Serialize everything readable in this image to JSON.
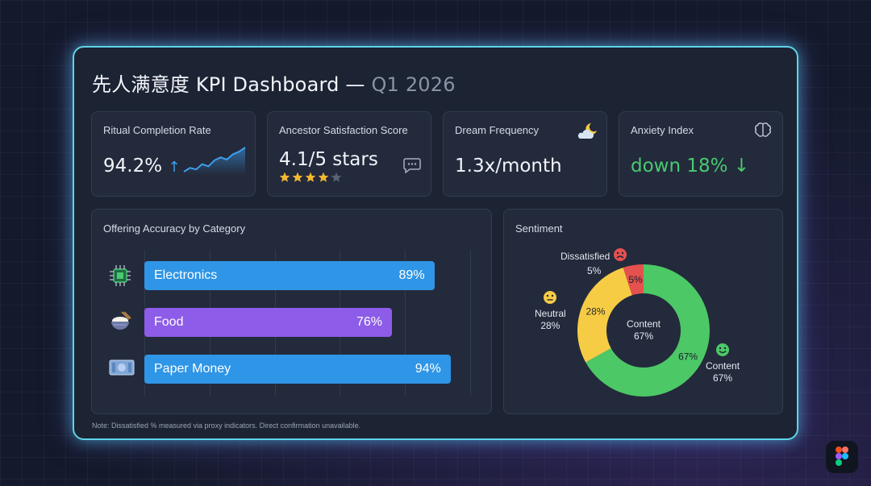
{
  "header": {
    "title": "先人满意度 KPI Dashboard —",
    "title_suffix": "Q1 2026"
  },
  "kpis": {
    "ritual": {
      "label": "Ritual Completion Rate",
      "value": "94.2%",
      "arrow": "↑",
      "icon": "sparkline-chart"
    },
    "ancestor": {
      "label": "Ancestor Satisfaction Score",
      "value": "4.1/5 stars",
      "stars": 4.1,
      "stars_max": 5,
      "icon": "chat-bubble-icon"
    },
    "dream": {
      "label": "Dream Frequency",
      "value": "1.3x/month",
      "icon": "moon-cloud-icon"
    },
    "anxiety": {
      "label": "Anxiety Index",
      "value": "down 18%",
      "arrow": "↓",
      "icon": "brain-icon",
      "value_color": "#49c971"
    }
  },
  "offering": {
    "label": "Offering Accuracy by Category"
  },
  "sentiment": {
    "label": "Sentiment",
    "center_label": "Content",
    "center_value": "67%"
  },
  "note": "Note: Dissatisfied % measured via proxy indicators. Direct confirmation unavailable.",
  "chart_data": [
    {
      "type": "bar",
      "title": "Offering Accuracy by Category",
      "orientation": "horizontal",
      "categories": [
        "Electronics",
        "Food",
        "Paper Money"
      ],
      "values": [
        89,
        76,
        94
      ],
      "value_labels": [
        "89%",
        "76%",
        "94%"
      ],
      "colors": [
        "#2f95e6",
        "#8d5ce8",
        "#2f95e6"
      ],
      "icons": [
        "circuit-chip-icon",
        "rice-bowl-icon",
        "banknote-icon"
      ],
      "xlim": [
        0,
        100
      ],
      "grid": true
    },
    {
      "type": "pie",
      "title": "Sentiment",
      "donut": true,
      "categories": [
        "Content",
        "Neutral",
        "Dissatisfied"
      ],
      "values": [
        67,
        28,
        5
      ],
      "value_labels": [
        "67%",
        "28%",
        "5%"
      ],
      "colors": [
        "#4cc866",
        "#f6cc45",
        "#e4514f"
      ],
      "legend_names": [
        "Content",
        "Neutral",
        "Dissatisfied"
      ],
      "legend_values": [
        "67%",
        "28%",
        "5%"
      ],
      "legend_icons": [
        "smile-icon",
        "neutral-face-icon",
        "frown-icon"
      ]
    },
    {
      "type": "line",
      "title": "",
      "sparkline": true,
      "values": [
        3,
        4,
        3.6,
        5,
        4.4,
        6,
        6.8,
        6.2,
        7.6,
        8.3,
        9.4
      ]
    }
  ]
}
